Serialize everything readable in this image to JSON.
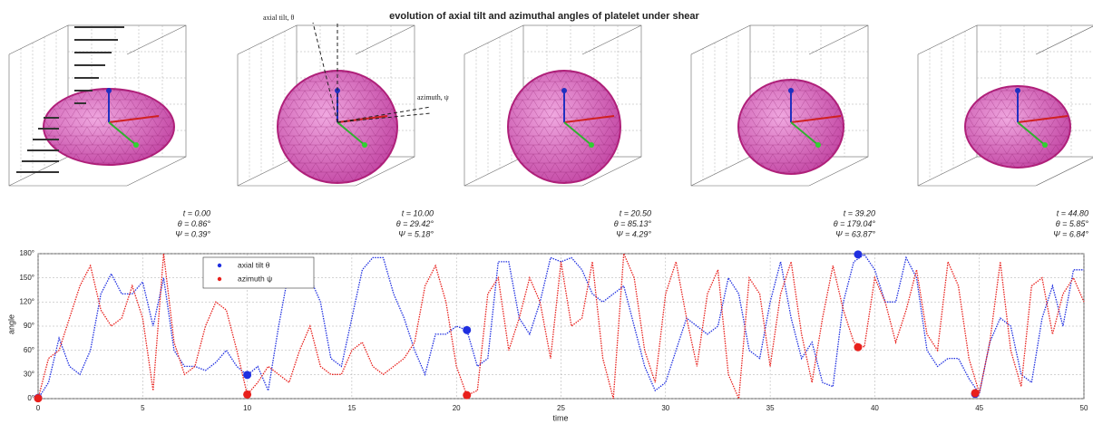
{
  "chart_data": {
    "type": "line",
    "title": "evolution of axial tilt and azimuthal angles of platelet under shear",
    "x_label": "time",
    "y_label": "angle",
    "x": [
      0,
      0.5,
      1,
      1.5,
      2,
      2.5,
      3,
      3.5,
      4,
      4.5,
      5,
      5.5,
      6,
      6.5,
      7,
      7.5,
      8,
      8.5,
      9,
      9.5,
      10,
      10.5,
      11,
      11.5,
      12,
      12.5,
      13,
      13.5,
      14,
      14.5,
      15,
      15.5,
      16,
      16.5,
      17,
      17.5,
      18,
      18.5,
      19,
      19.5,
      20,
      20.5,
      21,
      21.5,
      22,
      22.5,
      23,
      23.5,
      24,
      24.5,
      25,
      25.5,
      26,
      26.5,
      27,
      27.5,
      28,
      28.5,
      29,
      29.5,
      30,
      30.5,
      31,
      31.5,
      32,
      32.5,
      33,
      33.5,
      34,
      34.5,
      35,
      35.5,
      36,
      36.5,
      37,
      37.5,
      38,
      38.5,
      39,
      39.5,
      40,
      40.5,
      41,
      41.5,
      42,
      42.5,
      43,
      43.5,
      44,
      44.5,
      45,
      45.5,
      46,
      46.5,
      47,
      47.5,
      48,
      48.5,
      49,
      49.5,
      50
    ],
    "series": [
      {
        "name": "axial tilt θ",
        "color": "#1f2fe0",
        "values": [
          0,
          20,
          75,
          40,
          30,
          60,
          130,
          155,
          130,
          130,
          145,
          90,
          150,
          60,
          40,
          40,
          35,
          45,
          60,
          40,
          29,
          40,
          10,
          90,
          160,
          160,
          150,
          120,
          50,
          40,
          100,
          160,
          175,
          175,
          130,
          100,
          60,
          30,
          80,
          80,
          90,
          85,
          40,
          50,
          170,
          170,
          100,
          80,
          120,
          175,
          170,
          175,
          160,
          130,
          120,
          130,
          140,
          90,
          40,
          10,
          20,
          60,
          100,
          90,
          80,
          90,
          150,
          130,
          60,
          50,
          120,
          170,
          100,
          50,
          70,
          20,
          15,
          120,
          170,
          179,
          160,
          120,
          120,
          175,
          150,
          60,
          40,
          50,
          50,
          25,
          6,
          70,
          100,
          90,
          30,
          20,
          100,
          140,
          90,
          160,
          160
        ]
      },
      {
        "name": "azimuth ψ",
        "color": "#e8201c",
        "values": [
          0,
          50,
          60,
          100,
          140,
          165,
          110,
          90,
          100,
          140,
          100,
          10,
          180,
          70,
          30,
          40,
          90,
          120,
          110,
          60,
          5,
          20,
          40,
          30,
          20,
          60,
          90,
          40,
          30,
          30,
          60,
          70,
          40,
          30,
          40,
          50,
          70,
          140,
          165,
          120,
          40,
          4,
          10,
          130,
          150,
          60,
          100,
          150,
          120,
          50,
          170,
          90,
          100,
          170,
          50,
          0,
          180,
          150,
          60,
          20,
          130,
          170,
          100,
          40,
          130,
          160,
          30,
          0,
          150,
          130,
          40,
          130,
          170,
          80,
          20,
          100,
          165,
          110,
          70,
          64,
          150,
          120,
          70,
          110,
          160,
          80,
          60,
          170,
          140,
          50,
          7,
          70,
          170,
          60,
          15,
          140,
          150,
          80,
          130,
          150,
          120
        ]
      }
    ],
    "highlights": {
      "x": [
        0,
        10,
        20.5,
        39.2,
        44.8
      ],
      "theta": [
        0.86,
        29.42,
        85.13,
        179.04,
        5.85
      ],
      "psi": [
        0.39,
        5.18,
        4.29,
        63.87,
        6.84
      ]
    },
    "xlim": [
      0,
      50
    ],
    "xticks": [
      0,
      5,
      10,
      15,
      20,
      25,
      30,
      35,
      40,
      45,
      50
    ],
    "ylim": [
      0,
      180
    ],
    "yticks": [
      {
        "value": 0,
        "label": "0°"
      },
      {
        "value": 30,
        "label": "30°"
      },
      {
        "value": 60,
        "label": "60°"
      },
      {
        "value": 90,
        "label": "90°"
      },
      {
        "value": 120,
        "label": "120°"
      },
      {
        "value": 150,
        "label": "150°"
      },
      {
        "value": 180,
        "label": "180°"
      }
    ],
    "grid": true
  },
  "annotations": {
    "tilt": "axial tilt, θ",
    "azimuth": "azimuth, ψ"
  },
  "snapshots": [
    {
      "t": "t = 0.00",
      "theta": "θ = 0.86°",
      "psi": "Ψ = 0.39°"
    },
    {
      "t": "t = 10.00",
      "theta": "θ = 29.42°",
      "psi": "Ψ = 5.18°"
    },
    {
      "t": "t = 20.50",
      "theta": "θ = 85.13°",
      "psi": "Ψ = 4.29°"
    },
    {
      "t": "t = 39.20",
      "theta": "θ = 179.04°",
      "psi": "Ψ = 63.87°"
    },
    {
      "t": "t = 44.80",
      "theta": "θ = 5.85°",
      "psi": "Ψ = 6.84°"
    }
  ]
}
